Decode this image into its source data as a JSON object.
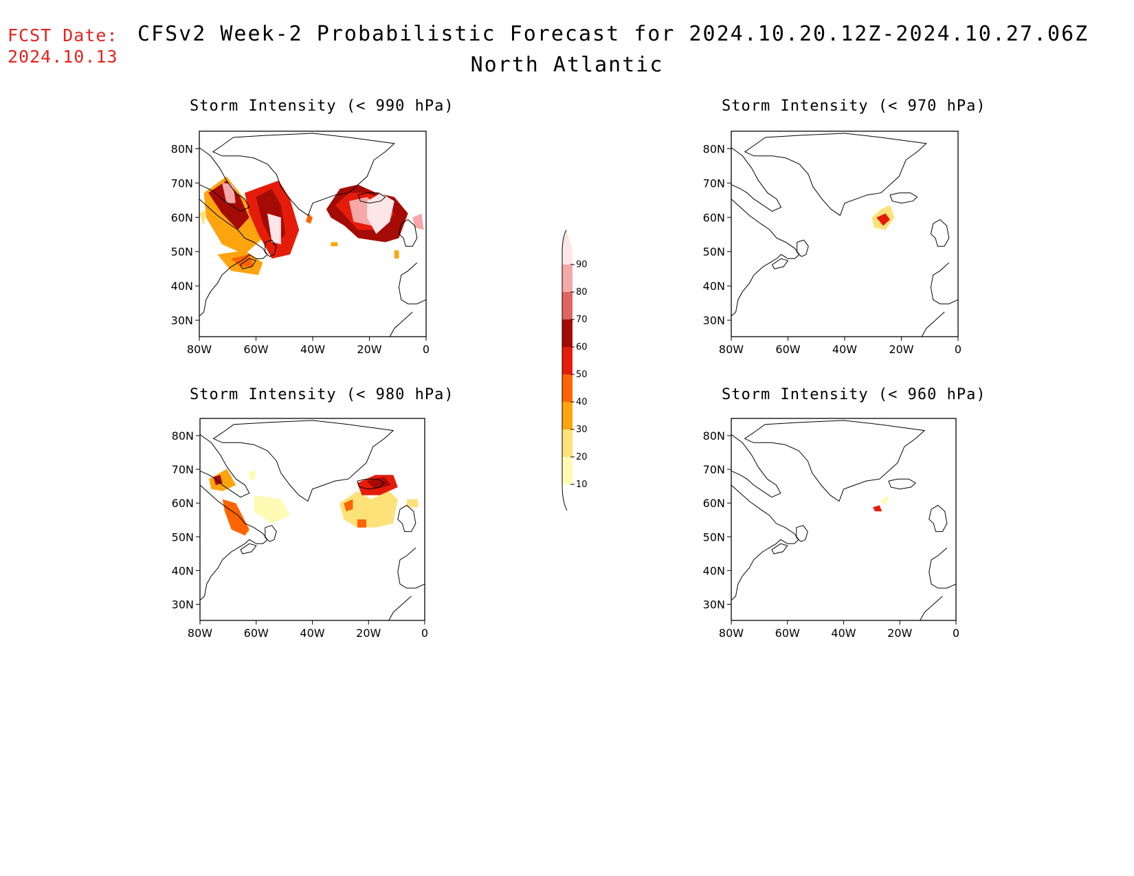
{
  "header": {
    "fcst_label": "FCST Date:",
    "fcst_date": "2024.10.13",
    "title": "CFSv2 Week-2 Probabilistic Forecast for 2024.10.20.12Z-2024.10.27.06Z",
    "region": "North Atlantic"
  },
  "panels": [
    {
      "title": "Storm Intensity (< 990 hPa)"
    },
    {
      "title": "Storm Intensity (< 970 hPa)"
    },
    {
      "title": "Storm Intensity (< 980 hPa)"
    },
    {
      "title": "Storm Intensity (< 960 hPa)"
    }
  ],
  "axes": {
    "lat_labels": [
      "80N",
      "70N",
      "60N",
      "50N",
      "40N",
      "30N"
    ],
    "lon_labels": [
      "80W",
      "60W",
      "40W",
      "20W",
      "0"
    ]
  },
  "colorbar": {
    "levels": [
      "10",
      "20",
      "30",
      "40",
      "50",
      "60",
      "70",
      "80",
      "90"
    ],
    "colors": [
      "#fffab4",
      "#fde27a",
      "#fda40f",
      "#ff6400",
      "#e51c0a",
      "#a50b05",
      "#e0645f",
      "#f4a8a8",
      "#fde6e8"
    ]
  }
}
